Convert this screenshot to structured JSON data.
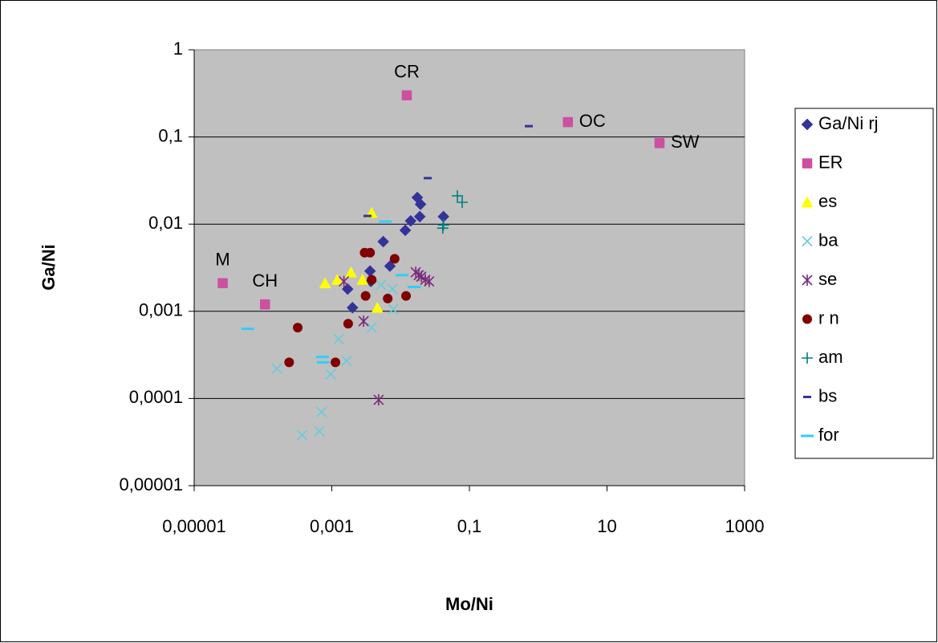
{
  "chart_data": {
    "type": "scatter",
    "xlabel": "Mo/Ni",
    "ylabel": "Ga/Ni",
    "xscale": "log",
    "yscale": "log",
    "xlim": [
      1e-05,
      1000
    ],
    "ylim": [
      1e-05,
      1
    ],
    "xticks": [
      {
        "value": 1e-05,
        "label": "0,00001"
      },
      {
        "value": 0.001,
        "label": "0,001"
      },
      {
        "value": 0.1,
        "label": "0,1"
      },
      10,
      1000
    ],
    "yticks": [
      {
        "value": 1e-05,
        "label": "0,00001"
      },
      {
        "value": 0.0001,
        "label": "0,0001"
      },
      {
        "value": 0.001,
        "label": "0,001"
      },
      {
        "value": 0.01,
        "label": "0,01"
      },
      {
        "value": 0.1,
        "label": "0,1"
      },
      1
    ],
    "ygrid": true,
    "legend": "right",
    "series": [
      {
        "name": "Ga/Ni rj",
        "color": "#333399",
        "marker": "diamond",
        "x": [
          0.0175,
          0.0195,
          0.019,
          0.014,
          0.0117,
          0.042,
          0.0056,
          0.007,
          0.0036,
          0.0037,
          0.0017,
          0.002
        ],
        "values": [
          0.0202,
          0.0169,
          0.0122,
          0.0109,
          0.0085,
          0.0122,
          0.0063,
          0.0033,
          0.0029,
          0.0022,
          0.0018,
          0.0011
        ]
      },
      {
        "name": "ER",
        "color": "#cc4fa0",
        "marker": "square",
        "x": [
          2.6e-05,
          0.000107,
          0.0123,
          2.7,
          58
        ],
        "values": [
          0.0021,
          0.0012,
          0.3,
          0.148,
          0.085
        ],
        "labels": [
          "M",
          "CH",
          "CR",
          "OC",
          "SW"
        ]
      },
      {
        "name": "es",
        "color": "#ffff00",
        "marker": "triangle",
        "x": [
          0.0038,
          0.0008,
          0.0012,
          0.0019,
          0.0028,
          0.0046
        ],
        "values": [
          0.0135,
          0.0021,
          0.0023,
          0.0028,
          0.0023,
          0.0011
        ]
      },
      {
        "name": "ba",
        "color": "#66ccdd",
        "marker": "x",
        "x": [
          0.00037,
          0.00066,
          0.00071,
          0.00016,
          0.00096,
          0.00126,
          0.00164,
          0.0038,
          0.0078,
          0.0076,
          0.0052
        ],
        "values": [
          3.8e-05,
          4.2e-05,
          7e-05,
          0.00022,
          0.00019,
          0.00048,
          0.00027,
          0.00065,
          0.00106,
          0.0018,
          0.002
        ]
      },
      {
        "name": "se",
        "color": "#7a2a7a",
        "marker": "star",
        "x": [
          0.0048,
          0.0029,
          0.0015,
          0.0166,
          0.02,
          0.0229,
          0.026,
          0.0184
        ],
        "values": [
          9.66e-05,
          0.00077,
          0.0022,
          0.0028,
          0.0025,
          0.0023,
          0.0022,
          0.0026
        ]
      },
      {
        "name": "r n",
        "color": "#800000",
        "marker": "circle",
        "x": [
          0.00024,
          0.00032,
          0.00113,
          0.00173,
          0.0031,
          0.0036,
          0.003,
          0.0038,
          0.0065,
          0.0082,
          0.012
        ],
        "values": [
          0.00026,
          0.00065,
          0.00026,
          0.00072,
          0.0015,
          0.0047,
          0.0047,
          0.0023,
          0.0014,
          0.004,
          0.0015
        ]
      },
      {
        "name": "am",
        "color": "#008080",
        "marker": "plus",
        "x": [
          0.067,
          0.0785,
          0.041,
          0.042
        ],
        "values": [
          0.0211,
          0.0178,
          0.009,
          0.0098
        ]
      },
      {
        "name": "bs",
        "color": "#333399",
        "marker": "dash",
        "x": [
          0.73,
          0.0248,
          0.0033
        ],
        "values": [
          0.133,
          0.0337,
          0.0124
        ]
      },
      {
        "name": "for",
        "color": "#33ccff",
        "marker": "long-dash",
        "x": [
          6e-05,
          0.00073,
          0.00075,
          0.006,
          0.0105,
          0.0157
        ],
        "values": [
          0.00063,
          0.0003,
          0.00026,
          0.0107,
          0.0026,
          0.0019
        ]
      }
    ]
  }
}
